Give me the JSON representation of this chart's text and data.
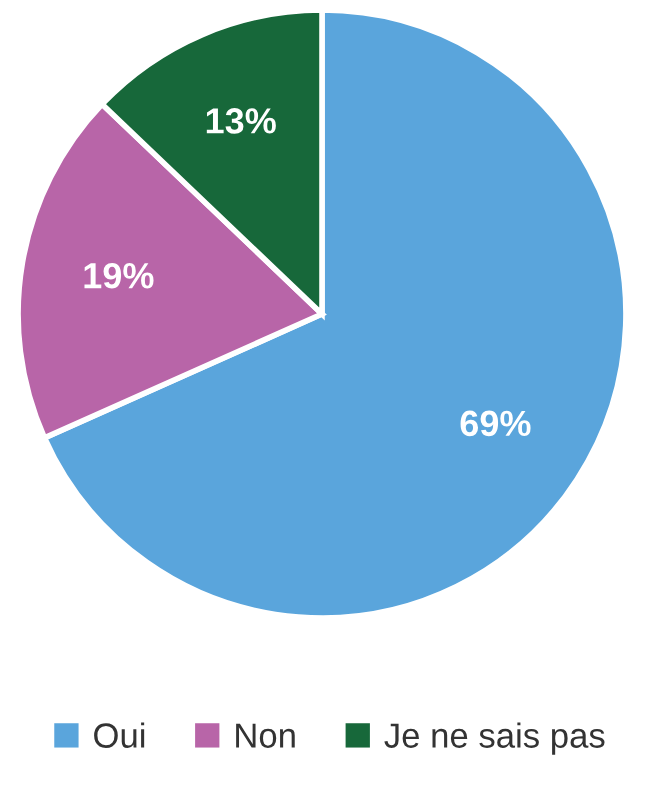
{
  "chart_data": {
    "type": "pie",
    "categories": [
      "Oui",
      "Non",
      "Je ne sais pas"
    ],
    "values": [
      69,
      19,
      13
    ],
    "colors": [
      "#5aa5dc",
      "#b865a8",
      "#17683a"
    ],
    "value_labels": [
      "69%",
      "19%",
      "13%"
    ],
    "legend": "bottom"
  }
}
